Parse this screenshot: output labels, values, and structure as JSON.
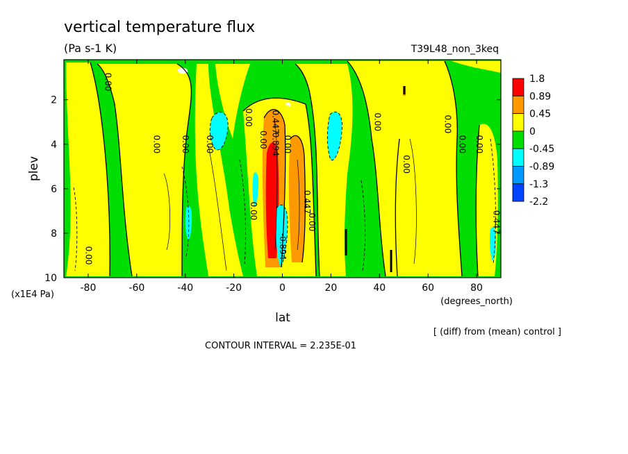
{
  "chart_data": {
    "type": "heatmap",
    "title": "vertical temperature flux",
    "units": "(Pa s-1 K)",
    "run_label": "T39L48_non_3keq",
    "xlabel": "lat",
    "x_units": "(degrees_north)",
    "ylabel": "plev",
    "y_units": "(x1E4 Pa)",
    "x_ticks": [
      -80,
      -60,
      -40,
      -20,
      0,
      20,
      40,
      60,
      80
    ],
    "y_ticks": [
      2,
      4,
      6,
      8,
      10
    ],
    "xlim": [
      -90,
      90
    ],
    "ylim": [
      0.2,
      10
    ],
    "y_reversed": true,
    "legend_levels": [
      "1.8",
      "0.89",
      "0.45",
      "0",
      "-0.45",
      "-0.89",
      "-1.3",
      "-2.2"
    ],
    "legend_colors": [
      "#ff0000",
      "#ff9900",
      "#ffff00",
      "#00dd00",
      "#00ffff",
      "#0099ff",
      "#0044ff"
    ],
    "contour_labels": [
      {
        "text": "0.00",
        "lat": -73,
        "plev": 1.2
      },
      {
        "text": "0.00",
        "lat": -81,
        "plev": 9.0
      },
      {
        "text": "0.00",
        "lat": -53,
        "plev": 4.0
      },
      {
        "text": "0.00",
        "lat": -41,
        "plev": 4.0
      },
      {
        "text": "0.00",
        "lat": -31,
        "plev": 4.0
      },
      {
        "text": "0.00",
        "lat": -15,
        "plev": 2.8
      },
      {
        "text": "0.00",
        "lat": -9,
        "plev": 3.8
      },
      {
        "text": "0.447",
        "lat": -4,
        "plev": 3.0
      },
      {
        "text": "0.894",
        "lat": -4,
        "plev": 4.0
      },
      {
        "text": "0.00",
        "lat": -13,
        "plev": 7.0
      },
      {
        "text": "0.447",
        "lat": 9,
        "plev": 6.6
      },
      {
        "text": "0.00",
        "lat": 1,
        "plev": 4.0
      },
      {
        "text": "0.00",
        "lat": 11,
        "plev": 7.5
      },
      {
        "text": "-0.894",
        "lat": -1,
        "plev": 8.6
      },
      {
        "text": "0.00",
        "lat": 38,
        "plev": 3.0
      },
      {
        "text": "0.00",
        "lat": 50,
        "plev": 4.9
      },
      {
        "text": "0.00",
        "lat": 67,
        "plev": 3.1
      },
      {
        "text": "0.00",
        "lat": 73,
        "plev": 4.0
      },
      {
        "text": "0.00",
        "lat": 80,
        "plev": 4.0
      },
      {
        "text": "0.447",
        "lat": 87,
        "plev": 7.5
      }
    ]
  },
  "footer": {
    "diff_note": "[ (diff) from (mean) control ]",
    "contour_interval": "CONTOUR INTERVAL = 2.235E-01"
  }
}
